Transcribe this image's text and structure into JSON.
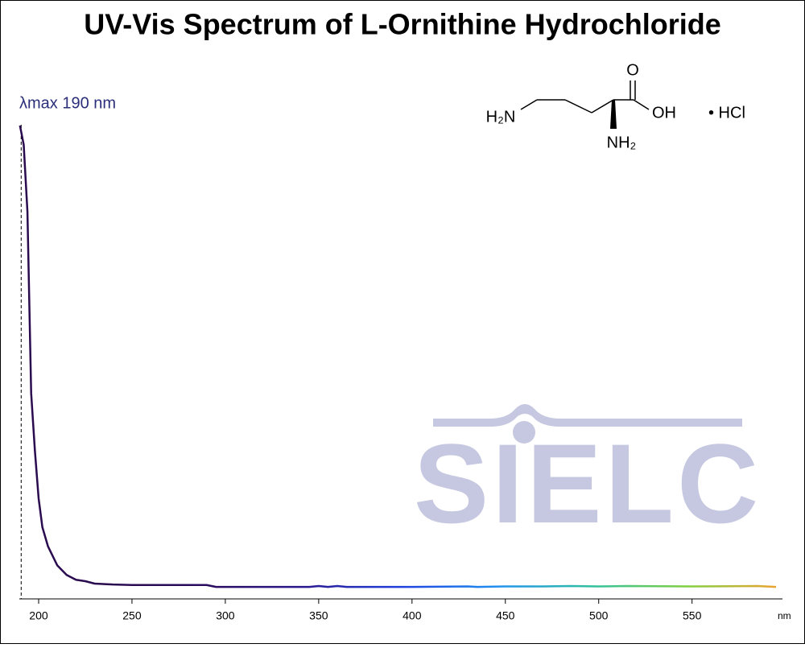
{
  "chart_data": {
    "type": "line",
    "title": "UV-Vis Spectrum of L-Ornithine Hydrochloride",
    "x_label": "nm",
    "annotation": "λmax  190 nm",
    "annotation_x": 190,
    "watermark": "SIELC",
    "molecule_labels": [
      "H₂N",
      "O",
      "OH",
      "NH₂",
      "• HCl"
    ],
    "x": [
      190,
      192,
      194,
      196,
      198,
      200,
      202,
      205,
      210,
      215,
      220,
      225,
      230,
      240,
      250,
      290,
      295,
      300,
      345,
      350,
      355,
      360,
      365,
      400,
      430,
      435,
      450,
      470,
      485,
      500,
      515,
      550,
      585,
      595
    ],
    "values": [
      0.99,
      0.95,
      0.81,
      0.43,
      0.31,
      0.21,
      0.15,
      0.11,
      0.07,
      0.05,
      0.04,
      0.037,
      0.032,
      0.03,
      0.029,
      0.029,
      0.025,
      0.025,
      0.025,
      0.027,
      0.025,
      0.027,
      0.025,
      0.025,
      0.026,
      0.025,
      0.026,
      0.026,
      0.027,
      0.026,
      0.027,
      0.026,
      0.027,
      0.025
    ],
    "colors": [
      "#2a0b4f",
      "#2a0b4f",
      "#2a0b5f",
      "#2a1a8f",
      "#2040e0",
      "#2090f0",
      "#30c0a0",
      "#80d040",
      "#f0a030"
    ],
    "xlim": [
      190,
      598
    ],
    "ylim": [
      0,
      1
    ],
    "xticks": [
      200,
      250,
      300,
      350,
      400,
      450,
      500,
      550
    ]
  }
}
